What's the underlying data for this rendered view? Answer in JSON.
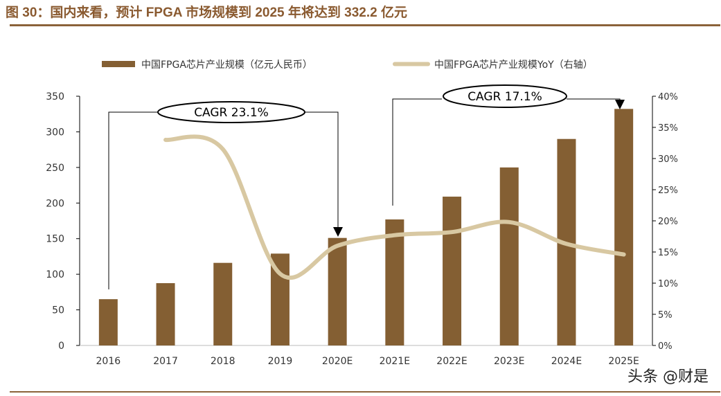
{
  "title": "图 30：国内来看，预计 FPGA 市场规模到 2025 年将达到 332.2 亿元",
  "watermark": "头条 @财是",
  "colors": {
    "bar": "#845f33",
    "line": "#d8c8a2",
    "title": "#8a5a30"
  },
  "chart_data": {
    "type": "bar+line",
    "categories": [
      "2016",
      "2017",
      "2018",
      "2019",
      "2020E",
      "2021E",
      "2022E",
      "2023E",
      "2024E",
      "2025E"
    ],
    "series": [
      {
        "name": "中国FPGA芯片产业规模（亿元人民币）",
        "type": "bar",
        "axis": "left",
        "values": [
          65,
          87.5,
          116,
          129,
          151,
          177,
          209,
          250,
          290,
          332.2
        ]
      },
      {
        "name": "中国FPGA芯片产业规模YoY（右轴）",
        "type": "line",
        "axis": "right",
        "values": [
          null,
          33.0,
          31.5,
          11.5,
          16.0,
          17.7,
          18.2,
          19.8,
          16.3,
          14.6
        ]
      }
    ],
    "ylim_left": [
      0,
      350
    ],
    "yticks_left": [
      "0",
      "50",
      "100",
      "150",
      "200",
      "250",
      "300",
      "350"
    ],
    "ylim_right": [
      0,
      40
    ],
    "yticks_right": [
      "0%",
      "5%",
      "10%",
      "15%",
      "20%",
      "25%",
      "30%",
      "35%",
      "40%"
    ],
    "legend": "top",
    "grid": false,
    "annotations": [
      {
        "text": "CAGR 23.1%",
        "from": "2016",
        "to": "2020E"
      },
      {
        "text": "CAGR 17.1%",
        "from": "2021E",
        "to": "2025E"
      }
    ]
  }
}
